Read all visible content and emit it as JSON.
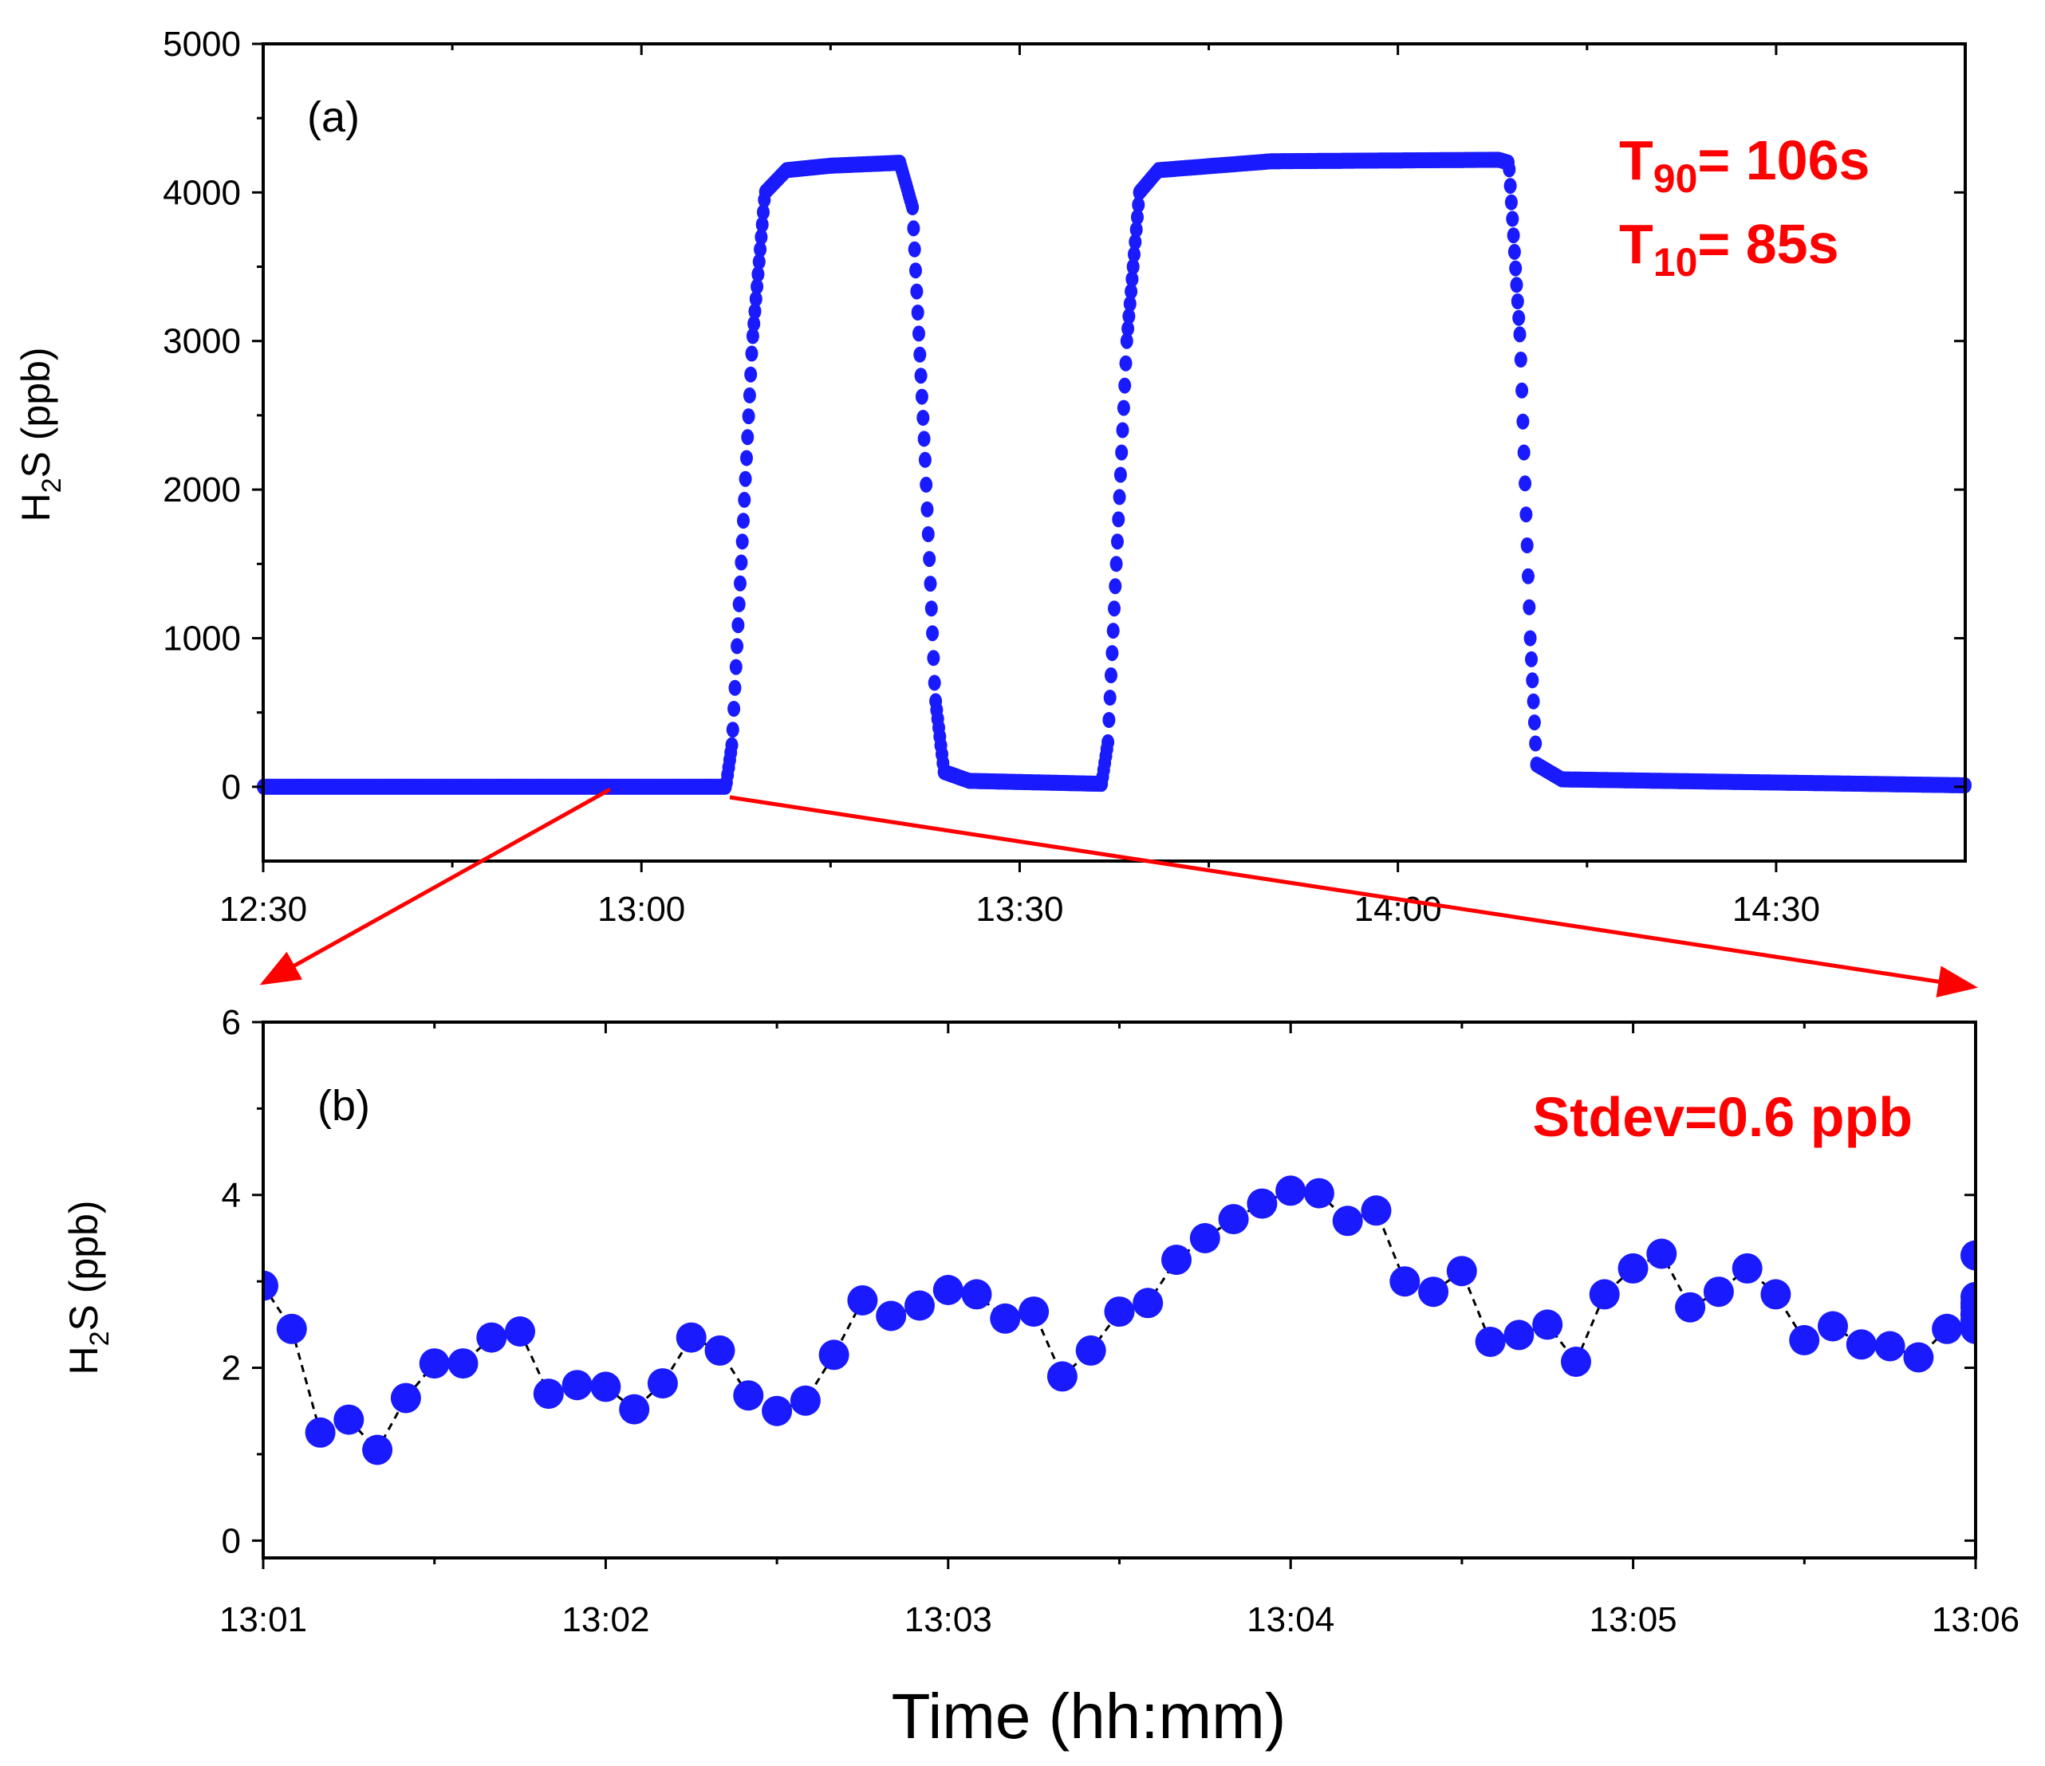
{
  "colors": {
    "marker": "#1a1aff",
    "annotation": "#ff0000",
    "axis": "#000000",
    "connector": "#000000"
  },
  "chart_data": [
    {
      "type": "scatter",
      "panel_label": "(a)",
      "ylabel": {
        "base": "H",
        "sub": "2",
        "rest": "S (ppb)"
      },
      "xlabel": "",
      "xlim_minutes": [
        0,
        135
      ],
      "ylim": [
        -500,
        5000
      ],
      "x_ticks": [
        {
          "value": 0,
          "label": "12:30"
        },
        {
          "value": 30,
          "label": "13:00"
        },
        {
          "value": 60,
          "label": "13:30"
        },
        {
          "value": 90,
          "label": "14:00"
        },
        {
          "value": 120,
          "label": "14:30"
        }
      ],
      "y_ticks": [
        {
          "value": 0,
          "label": "0"
        },
        {
          "value": 1000,
          "label": "1000"
        },
        {
          "value": 2000,
          "label": "2000"
        },
        {
          "value": 3000,
          "label": "3000"
        },
        {
          "value": 4000,
          "label": "4000"
        },
        {
          "value": 5000,
          "label": "5000"
        }
      ],
      "x_unit": "minutes after 12:30",
      "series_profile": [
        {
          "t": 0,
          "v": 0
        },
        {
          "t": 36.7,
          "v": 0
        },
        {
          "t": 37.2,
          "v": 300
        },
        {
          "t": 38.8,
          "v": 3000
        },
        {
          "t": 39.8,
          "v": 4000
        },
        {
          "t": 41.5,
          "v": 4150
        },
        {
          "t": 45,
          "v": 4180
        },
        {
          "t": 50.5,
          "v": 4200
        },
        {
          "t": 51.5,
          "v": 3900
        },
        {
          "t": 52.5,
          "v": 2200
        },
        {
          "t": 53.3,
          "v": 600
        },
        {
          "t": 54,
          "v": 100
        },
        {
          "t": 56,
          "v": 40
        },
        {
          "t": 66.5,
          "v": 20
        },
        {
          "t": 67,
          "v": 300
        },
        {
          "t": 68.5,
          "v": 3000
        },
        {
          "t": 69.5,
          "v": 4000
        },
        {
          "t": 71,
          "v": 4150
        },
        {
          "t": 80,
          "v": 4210
        },
        {
          "t": 98,
          "v": 4220
        },
        {
          "t": 98.8,
          "v": 4200
        },
        {
          "t": 99.7,
          "v": 3000
        },
        {
          "t": 100.5,
          "v": 1000
        },
        {
          "t": 101,
          "v": 150
        },
        {
          "t": 103,
          "v": 50
        },
        {
          "t": 135,
          "v": 10
        }
      ],
      "annotations": [
        {
          "base": "T",
          "sub": "90",
          "rest": "= 106s"
        },
        {
          "base": "T",
          "sub": "10",
          "rest": "= 85s"
        }
      ]
    },
    {
      "type": "line",
      "panel_label": "(b)",
      "ylabel": {
        "base": "H",
        "sub": "2",
        "rest": "S (ppb)"
      },
      "xlabel": "Time (hh:mm)",
      "xlim_minutes": [
        0,
        5
      ],
      "ylim": [
        -0.2,
        6
      ],
      "x_ticks": [
        {
          "value": 0,
          "label": "13:01"
        },
        {
          "value": 1,
          "label": "13:02"
        },
        {
          "value": 2,
          "label": "13:03"
        },
        {
          "value": 3,
          "label": "13:04"
        },
        {
          "value": 4,
          "label": "13:05"
        },
        {
          "value": 5,
          "label": "13:06"
        }
      ],
      "y_ticks": [
        {
          "value": 0,
          "label": "0"
        },
        {
          "value": 2,
          "label": "2"
        },
        {
          "value": 4,
          "label": "4"
        },
        {
          "value": 6,
          "label": "6"
        }
      ],
      "x_unit": "minutes after 13:01",
      "sample_interval_minutes": 0.08333,
      "values": [
        2.95,
        2.45,
        1.25,
        1.4,
        1.05,
        1.65,
        2.05,
        2.05,
        2.35,
        2.42,
        1.7,
        1.8,
        1.78,
        1.52,
        1.82,
        2.35,
        2.2,
        1.68,
        1.5,
        1.62,
        2.15,
        2.78,
        2.6,
        2.72,
        2.9,
        2.85,
        2.57,
        2.65,
        1.9,
        2.2,
        2.65,
        2.75,
        3.25,
        3.5,
        3.72,
        3.9,
        4.05,
        4.02,
        3.7,
        3.82,
        3.0,
        2.88,
        3.12,
        2.3,
        2.38,
        2.5,
        2.07,
        2.85,
        3.15,
        3.32,
        2.7,
        2.88,
        3.15,
        2.85,
        2.32,
        2.48,
        2.27,
        2.25,
        2.12,
        2.45,
        2.62,
        2.75,
        2.82,
        2.7,
        2.45,
        3.3,
        2.55
      ],
      "annotations": [
        {
          "text": "Stdev=0.6 ppb"
        }
      ]
    }
  ]
}
